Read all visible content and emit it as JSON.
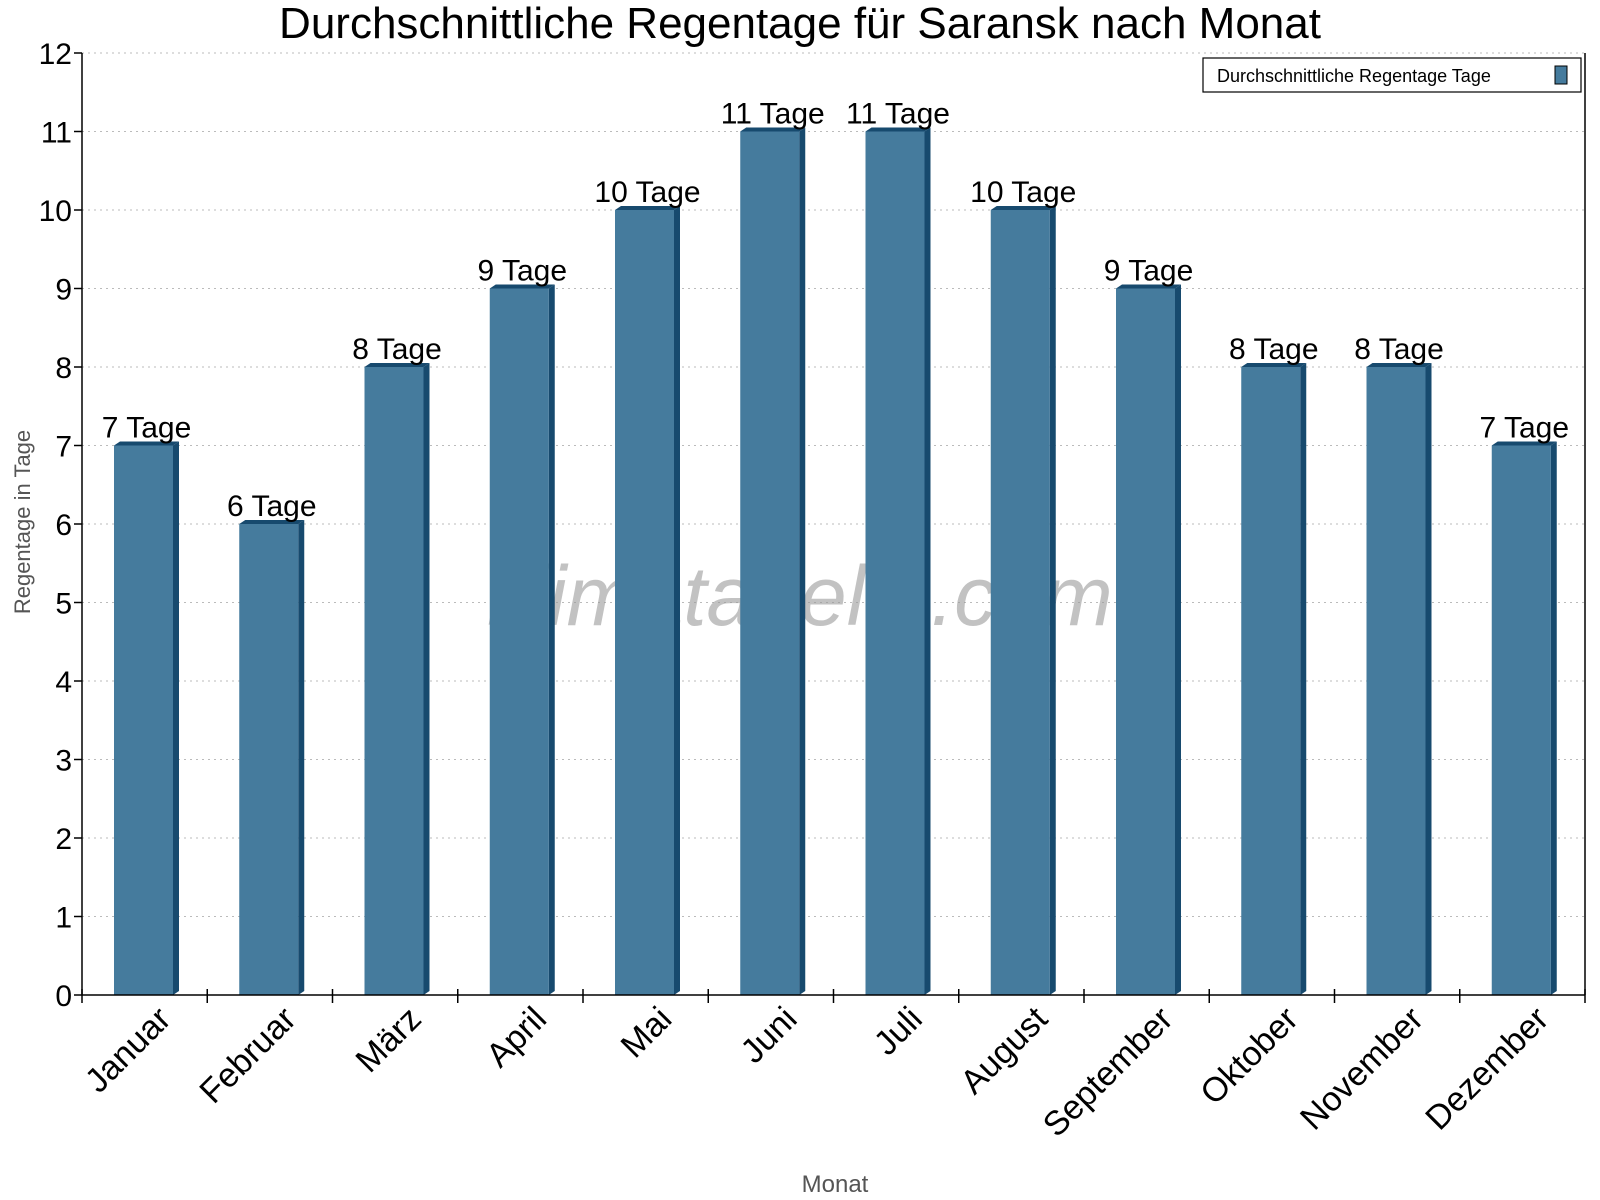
{
  "chart_data": {
    "type": "bar",
    "title": "Durchschnittliche Regentage für Saransk nach Monat",
    "xlabel": "Monat",
    "ylabel": "Regentage in Tage",
    "ylim": [
      0,
      12
    ],
    "yticks": [
      0,
      1,
      2,
      3,
      4,
      5,
      6,
      7,
      8,
      9,
      10,
      11,
      12
    ],
    "grid": true,
    "legend_position": "top-right",
    "categories": [
      "Januar",
      "Februar",
      "März",
      "April",
      "Mai",
      "Juni",
      "Juli",
      "August",
      "September",
      "Oktober",
      "November",
      "Dezember"
    ],
    "series": [
      {
        "name": "Durchschnittliche Regentage Tage",
        "values": [
          7,
          6,
          8,
          9,
          10,
          11,
          11,
          10,
          9,
          8,
          8,
          7
        ],
        "labels": [
          "7 Tage",
          "6 Tage",
          "8 Tage",
          "9 Tage",
          "10 Tage",
          "11 Tage",
          "11 Tage",
          "10 Tage",
          "9 Tage",
          "8 Tage",
          "8 Tage",
          "7 Tage"
        ],
        "color": "#457b9d",
        "side_color": "#174a6e"
      }
    ]
  },
  "watermark": "klimatabelle.com"
}
